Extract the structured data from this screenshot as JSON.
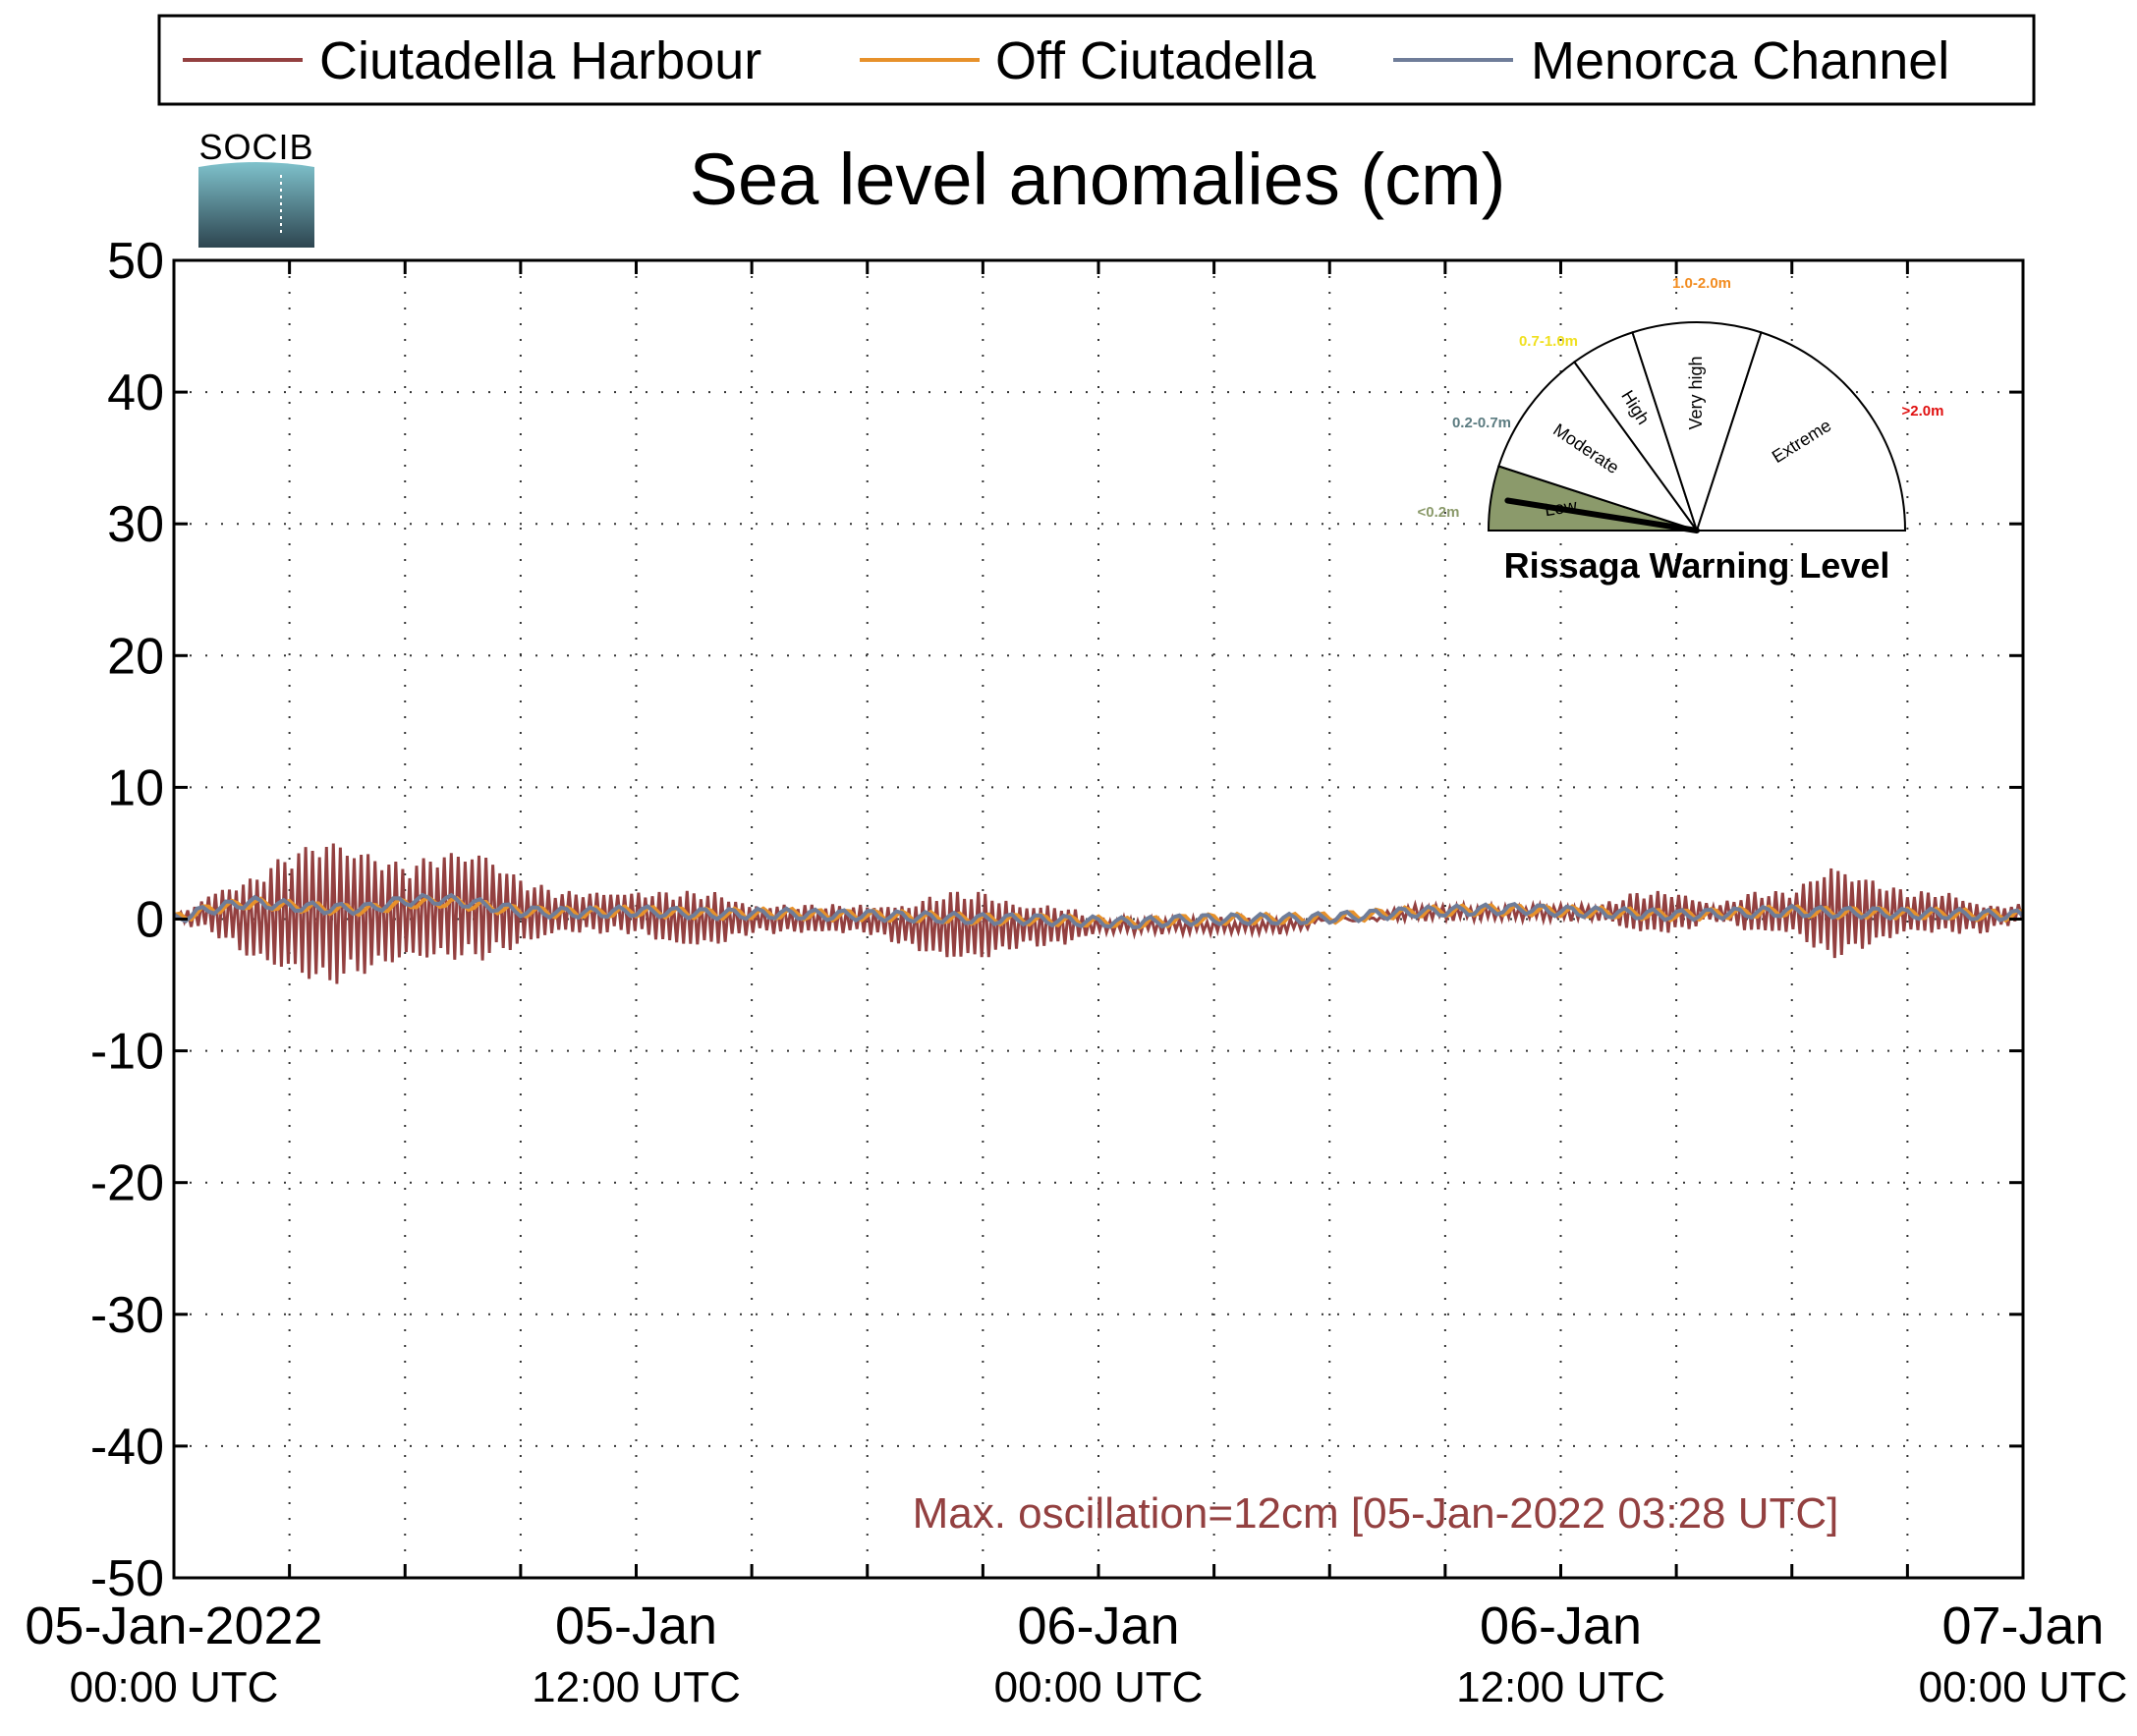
{
  "chart_data": {
    "type": "line",
    "title": "Sea level anomalies (cm)",
    "xlabel": "",
    "ylabel": "",
    "ylim": [
      -50,
      50
    ],
    "yticks": [
      50,
      40,
      30,
      20,
      10,
      0,
      -10,
      -20,
      -30,
      -40,
      -50
    ],
    "xlim_hours": [
      0,
      48
    ],
    "xticks": [
      {
        "line1": "05-Jan-2022",
        "line2": "00:00 UTC"
      },
      {
        "line1": "05-Jan",
        "line2": "12:00 UTC"
      },
      {
        "line1": "06-Jan",
        "line2": "00:00 UTC"
      },
      {
        "line1": "06-Jan",
        "line2": "12:00 UTC"
      },
      {
        "line1": "07-Jan",
        "line2": "00:00 UTC"
      }
    ],
    "grid": true,
    "legend_position": "top",
    "series": [
      {
        "name": "Ciutadella Harbour",
        "color": "#934040",
        "x_hours": [
          0,
          1,
          2,
          3,
          4,
          5,
          6,
          7,
          8,
          9,
          10,
          11,
          12,
          13,
          14,
          15,
          16,
          17,
          18,
          19,
          20,
          21,
          22,
          23,
          24,
          25,
          26,
          27,
          28,
          29,
          30,
          31,
          32,
          33,
          34,
          35,
          36,
          37,
          38,
          39,
          40,
          41,
          42,
          43,
          44,
          45,
          46,
          47,
          48
        ],
        "y_max": [
          0,
          2,
          3,
          5,
          6,
          5,
          4,
          5,
          5,
          3,
          2,
          2,
          2,
          2,
          2,
          1,
          1,
          1,
          1,
          1,
          2,
          2,
          1,
          1,
          0,
          0,
          0,
          0,
          0,
          0,
          0,
          0,
          1,
          1,
          1,
          1,
          1,
          1,
          2,
          2,
          1,
          2,
          2,
          4,
          3,
          2,
          2,
          1,
          1
        ],
        "y_min": [
          0,
          -1,
          -3,
          -4,
          -5,
          -4,
          -3,
          -3,
          -3,
          -2,
          -1,
          -1,
          -1,
          -2,
          -2,
          -1,
          -1,
          -1,
          -1,
          -2,
          -3,
          -3,
          -2,
          -2,
          -1,
          -1,
          -1,
          -1,
          -1,
          -1,
          0,
          0,
          0,
          0,
          0,
          0,
          0,
          0,
          -1,
          -1,
          0,
          -1,
          -1,
          -3,
          -2,
          -1,
          -1,
          -1,
          0
        ]
      },
      {
        "name": "Off Ciutadella",
        "color": "#e7912b",
        "x_hours": [
          0,
          1,
          2,
          3,
          4,
          5,
          6,
          7,
          8,
          9,
          10,
          11,
          12,
          13,
          14,
          15,
          16,
          17,
          18,
          19,
          20,
          21,
          22,
          23,
          24,
          25,
          26,
          27,
          28,
          29,
          30,
          31,
          32,
          33,
          34,
          35,
          36,
          37,
          38,
          39,
          40,
          41,
          42,
          43,
          44,
          45,
          46,
          47,
          48
        ],
        "y": [
          0,
          0.8,
          1.2,
          1,
          0.8,
          0.7,
          1.2,
          1.3,
          1,
          0.6,
          0.5,
          0.5,
          0.6,
          0.5,
          0.4,
          0.4,
          0.4,
          0.3,
          0.3,
          0.2,
          0.1,
          0,
          0,
          -0.1,
          -0.2,
          -0.3,
          -0.1,
          0,
          0,
          0,
          0.1,
          0.3,
          0.5,
          0.6,
          0.7,
          0.7,
          0.6,
          0.5,
          0.4,
          0.3,
          0.4,
          0.5,
          0.6,
          0.5,
          0.5,
          0.4,
          0.4,
          0.3,
          0.3
        ]
      },
      {
        "name": "Menorca Channel",
        "color": "#6f7d99",
        "x_hours": [
          0,
          1,
          2,
          3,
          4,
          5,
          6,
          7,
          8,
          9,
          10,
          11,
          12,
          13,
          14,
          15,
          16,
          17,
          18,
          19,
          20,
          21,
          22,
          23,
          24,
          25,
          26,
          27,
          28,
          29,
          30,
          31,
          32,
          33,
          34,
          35,
          36,
          37,
          38,
          39,
          40,
          41,
          42,
          43,
          44,
          45,
          46,
          47,
          48
        ],
        "y": [
          0,
          0.8,
          1.3,
          1,
          0.8,
          0.8,
          1.4,
          1.5,
          1.1,
          0.6,
          0.5,
          0.5,
          0.6,
          0.5,
          0.4,
          0.4,
          0.4,
          0.3,
          0.3,
          0.2,
          0.1,
          0,
          0,
          -0.1,
          -0.2,
          -0.3,
          -0.1,
          0,
          0,
          0,
          0.1,
          0.3,
          0.5,
          0.6,
          0.7,
          0.8,
          0.6,
          0.5,
          0.4,
          0.3,
          0.4,
          0.5,
          0.6,
          0.5,
          0.5,
          0.4,
          0.4,
          0.3,
          0.3
        ]
      }
    ],
    "annotation": "Max. oscillation=12cm [05-Jan-2022 03:28 UTC]",
    "annotation_color": "#934040"
  },
  "logo_text": "SOCIB",
  "gauge": {
    "title": "Rissaga Warning Level",
    "sectors": [
      "Low",
      "Moderate",
      "High",
      "Very high",
      "Extreme"
    ],
    "ranges": [
      {
        "label": "<0.2m",
        "color": "#8b9a6b"
      },
      {
        "label": "0.2-0.7m",
        "color": "#5b7b80"
      },
      {
        "label": "0.7-1.0m",
        "color": "#f0e020"
      },
      {
        "label": "1.0-2.0m",
        "color": "#f28c20"
      },
      {
        "label": ">2.0m",
        "color": "#e01010"
      }
    ],
    "active_level": "Low"
  }
}
